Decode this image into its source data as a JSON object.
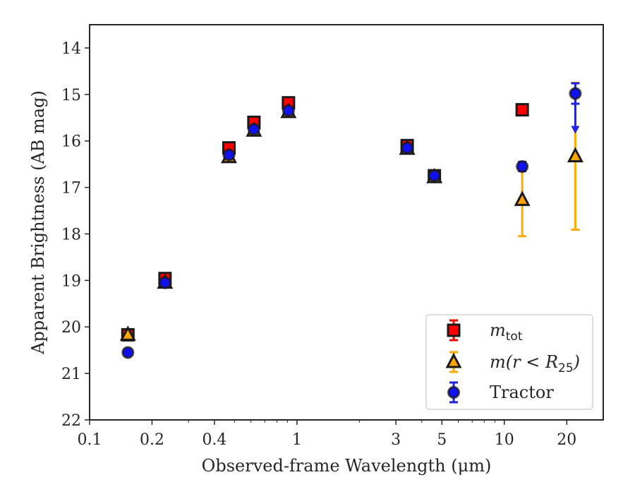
{
  "chart_data": {
    "type": "scatter",
    "xlabel": "Observed-frame Wavelength (μm)",
    "ylabel": "Apparent Brightness (AB mag)",
    "xscale": "log",
    "xlim": [
      0.1,
      30
    ],
    "ylim": [
      22.0,
      13.5
    ],
    "y_inverted": true,
    "x_ticks": [
      0.1,
      0.2,
      0.4,
      1,
      3,
      5,
      10,
      20
    ],
    "x_tick_labels": [
      "0.1",
      "0.2",
      "0.4",
      "1",
      "3",
      "5",
      "10",
      "20"
    ],
    "y_ticks": [
      14,
      15,
      16,
      17,
      18,
      19,
      20,
      21,
      22
    ],
    "y_tick_labels": [
      "14",
      "15",
      "16",
      "17",
      "18",
      "19",
      "20",
      "21",
      "22"
    ],
    "legend_position": "lower right",
    "series": [
      {
        "name": "m_tot",
        "legend_main": "m",
        "legend_sub": "tot",
        "marker": "square",
        "color": "#ff0000",
        "errcolor": "#ff0000",
        "points": [
          {
            "x": 0.153,
            "y": 20.17,
            "err": 0.05
          },
          {
            "x": 0.231,
            "y": 18.96,
            "err": 0.05
          },
          {
            "x": 0.47,
            "y": 16.15,
            "err": 0.04
          },
          {
            "x": 0.62,
            "y": 15.6,
            "err": 0.04
          },
          {
            "x": 0.91,
            "y": 15.18,
            "err": 0.04
          },
          {
            "x": 3.4,
            "y": 16.1,
            "err": 0.03
          },
          {
            "x": 4.6,
            "y": 16.75,
            "err": 0.03
          },
          {
            "x": 12.2,
            "y": 15.33,
            "err": 0.03
          }
        ]
      },
      {
        "name": "m(r<R_25)",
        "legend_main": "m(r < R",
        "legend_sub": "25",
        "legend_tail": ")",
        "marker": "triangle",
        "color": "#ffa500",
        "errcolor": "#ffaa00",
        "points": [
          {
            "x": 0.153,
            "y": 20.17,
            "err": 0.05
          },
          {
            "x": 0.231,
            "y": 19.05,
            "err": 0.05
          },
          {
            "x": 0.47,
            "y": 16.35,
            "err": 0.04
          },
          {
            "x": 0.62,
            "y": 15.78,
            "err": 0.04
          },
          {
            "x": 0.91,
            "y": 15.38,
            "err": 0.04
          },
          {
            "x": 3.4,
            "y": 16.17,
            "err": 0.03
          },
          {
            "x": 4.6,
            "y": 16.78,
            "err": 0.03
          },
          {
            "x": 12.2,
            "y": 17.27,
            "err": 0.78
          },
          {
            "x": 22.0,
            "y": 16.33,
            "err": 1.58
          }
        ]
      },
      {
        "name": "Tractor",
        "legend_main": "Tractor",
        "marker": "circle",
        "color": "#1111ee",
        "errcolor": "#2222dd",
        "points": [
          {
            "x": 0.153,
            "y": 20.55,
            "err": 0.05
          },
          {
            "x": 0.231,
            "y": 19.05,
            "err": 0.05
          },
          {
            "x": 0.47,
            "y": 16.3,
            "err": 0.04
          },
          {
            "x": 0.62,
            "y": 15.75,
            "err": 0.04
          },
          {
            "x": 0.91,
            "y": 15.35,
            "err": 0.04
          },
          {
            "x": 3.4,
            "y": 16.15,
            "err": 0.03
          },
          {
            "x": 4.6,
            "y": 16.75,
            "err": 0.03
          },
          {
            "x": 12.2,
            "y": 16.55,
            "err": 0.1
          },
          {
            "x": 22.0,
            "y": 14.98,
            "err": 0.22,
            "upper_limit_arrow_to": 15.8
          }
        ]
      }
    ]
  }
}
